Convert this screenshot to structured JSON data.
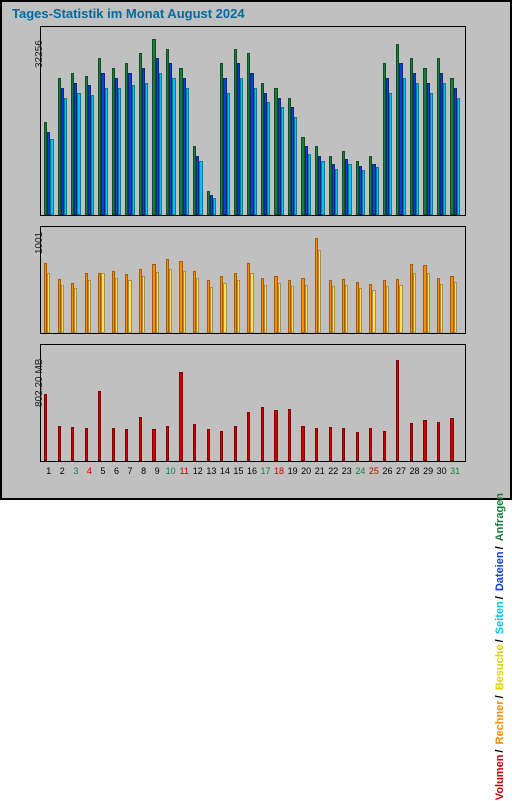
{
  "title": "Tages-Statistik im Monat August 2024",
  "legend": [
    "Volumen",
    "Rechner",
    "Besuche",
    "Seiten",
    "Dateien",
    "Anfragen"
  ],
  "days": [
    1,
    2,
    3,
    4,
    5,
    6,
    7,
    8,
    9,
    10,
    11,
    12,
    13,
    14,
    15,
    16,
    17,
    18,
    19,
    20,
    21,
    22,
    23,
    24,
    25,
    26,
    27,
    28,
    29,
    30,
    31
  ],
  "day_colors": [
    "#000",
    "#000",
    "#1a7a3a",
    "#cc0000",
    "#000",
    "#000",
    "#000",
    "#000",
    "#000",
    "#1a7a3a",
    "#cc0000",
    "#000",
    "#000",
    "#000",
    "#000",
    "#000",
    "#1a7a3a",
    "#cc0000",
    "#000",
    "#000",
    "#000",
    "#000",
    "#000",
    "#1a7a3a",
    "#cc0000",
    "#000",
    "#000",
    "#000",
    "#000",
    "#000",
    "#1a7a3a"
  ],
  "panels": {
    "top": {
      "ylabel": "32256",
      "ymax": 38000,
      "colors": {
        "anfragen": "#1a7a3a",
        "dateien": "#1040d0",
        "seiten": "#00c4e8"
      },
      "series": {
        "anfragen": [
          19000,
          28000,
          29000,
          28500,
          32000,
          30000,
          31000,
          33000,
          36000,
          34000,
          30000,
          14000,
          5000,
          31000,
          34000,
          33000,
          27000,
          26000,
          24000,
          16000,
          14000,
          12000,
          13000,
          11000,
          12000,
          31000,
          35000,
          32000,
          30000,
          32000,
          28000
        ],
        "dateien": [
          17000,
          26000,
          27000,
          26500,
          29000,
          28000,
          29000,
          30000,
          32000,
          31000,
          28000,
          12000,
          4000,
          28000,
          31000,
          29000,
          25000,
          24000,
          22000,
          14000,
          12000,
          10500,
          11500,
          10000,
          10500,
          28000,
          31000,
          29000,
          27000,
          29000,
          26000
        ],
        "seiten": [
          15500,
          24000,
          25000,
          24500,
          26000,
          26000,
          26500,
          27000,
          29000,
          28000,
          26000,
          11000,
          3500,
          25000,
          28000,
          26000,
          23000,
          22000,
          20000,
          12500,
          11000,
          9500,
          10500,
          9200,
          9800,
          25000,
          28000,
          27000,
          25000,
          27000,
          24000
        ]
      }
    },
    "mid": {
      "ylabel": "1001",
      "ymax": 1100,
      "colors": {
        "rechner": "#ff8c00",
        "besuche": "#ffe060"
      },
      "series": {
        "rechner": [
          740,
          570,
          530,
          640,
          640,
          660,
          620,
          680,
          730,
          780,
          760,
          660,
          560,
          600,
          640,
          740,
          580,
          600,
          560,
          580,
          1000,
          560,
          570,
          540,
          520,
          560,
          570,
          730,
          720,
          580,
          600
        ],
        "besuche": [
          640,
          510,
          480,
          560,
          640,
          580,
          560,
          600,
          650,
          680,
          660,
          580,
          490,
          530,
          560,
          640,
          510,
          530,
          500,
          510,
          880,
          500,
          510,
          480,
          460,
          500,
          510,
          640,
          630,
          520,
          540
        ]
      }
    },
    "bot": {
      "ylabel": "802.20 MB",
      "ymax": 900,
      "colors": {
        "volumen": "#cc0000"
      },
      "series": {
        "volumen": [
          530,
          280,
          270,
          260,
          550,
          260,
          250,
          350,
          250,
          280,
          700,
          290,
          250,
          240,
          280,
          390,
          430,
          400,
          410,
          280,
          260,
          270,
          260,
          230,
          260,
          240,
          800,
          300,
          320,
          310,
          340
        ]
      }
    }
  }
}
